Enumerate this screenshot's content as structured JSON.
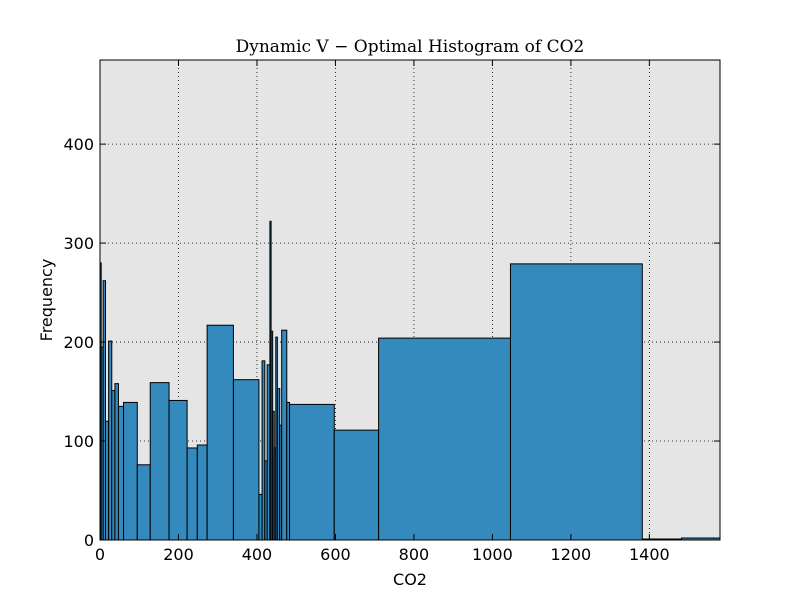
{
  "chart_data": {
    "type": "bar",
    "title": "Dynamic V − Optimal Histogram of CO2",
    "xlabel": "CO2",
    "ylabel": "Frequency",
    "xlim": [
      0,
      1580
    ],
    "ylim": [
      0,
      485
    ],
    "xticks": [
      0,
      200,
      400,
      600,
      800,
      1000,
      1200,
      1400
    ],
    "yticks": [
      0,
      100,
      200,
      300,
      400
    ],
    "grid": true,
    "background_color": "#e5e5e5",
    "bar_color": "#348abd",
    "edge_color": "#000000",
    "bins": [
      {
        "x0": 0,
        "x1": 3,
        "value": 280
      },
      {
        "x0": 3,
        "x1": 8,
        "value": 195
      },
      {
        "x0": 8,
        "x1": 14,
        "value": 262
      },
      {
        "x0": 14,
        "x1": 22,
        "value": 120
      },
      {
        "x0": 22,
        "x1": 30,
        "value": 201
      },
      {
        "x0": 30,
        "x1": 38,
        "value": 151
      },
      {
        "x0": 38,
        "x1": 47,
        "value": 158
      },
      {
        "x0": 47,
        "x1": 60,
        "value": 135
      },
      {
        "x0": 60,
        "x1": 95,
        "value": 139
      },
      {
        "x0": 95,
        "x1": 128,
        "value": 76
      },
      {
        "x0": 128,
        "x1": 176,
        "value": 159
      },
      {
        "x0": 176,
        "x1": 222,
        "value": 141
      },
      {
        "x0": 222,
        "x1": 248,
        "value": 93
      },
      {
        "x0": 248,
        "x1": 273,
        "value": 96
      },
      {
        "x0": 273,
        "x1": 340,
        "value": 217
      },
      {
        "x0": 340,
        "x1": 405,
        "value": 162
      },
      {
        "x0": 405,
        "x1": 413,
        "value": 46
      },
      {
        "x0": 413,
        "x1": 420,
        "value": 181
      },
      {
        "x0": 420,
        "x1": 426,
        "value": 80
      },
      {
        "x0": 426,
        "x1": 433,
        "value": 177
      },
      {
        "x0": 433,
        "x1": 436,
        "value": 322
      },
      {
        "x0": 436,
        "x1": 440,
        "value": 211
      },
      {
        "x0": 440,
        "x1": 444,
        "value": 130
      },
      {
        "x0": 444,
        "x1": 448,
        "value": 93
      },
      {
        "x0": 448,
        "x1": 452,
        "value": 205
      },
      {
        "x0": 452,
        "x1": 458,
        "value": 153
      },
      {
        "x0": 458,
        "x1": 463,
        "value": 116
      },
      {
        "x0": 463,
        "x1": 476,
        "value": 212
      },
      {
        "x0": 476,
        "x1": 483,
        "value": 139
      },
      {
        "x0": 483,
        "x1": 597,
        "value": 137
      },
      {
        "x0": 597,
        "x1": 710,
        "value": 111
      },
      {
        "x0": 710,
        "x1": 1046,
        "value": 204
      },
      {
        "x0": 1046,
        "x1": 1382,
        "value": 279
      },
      {
        "x0": 1382,
        "x1": 1482,
        "value": 1
      },
      {
        "x0": 1482,
        "x1": 1580,
        "value": 2
      }
    ]
  }
}
